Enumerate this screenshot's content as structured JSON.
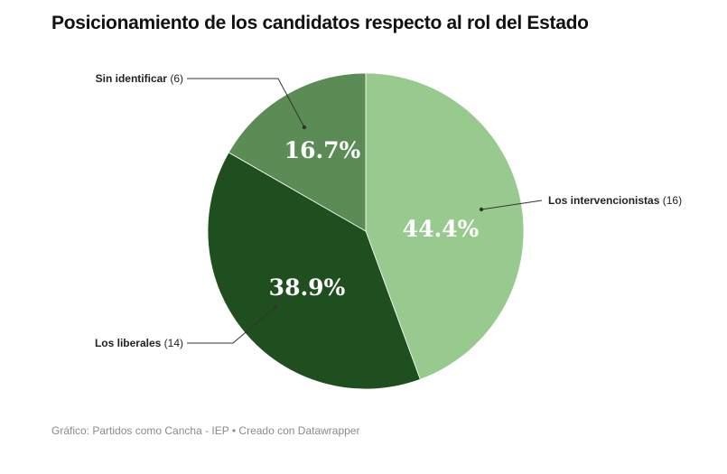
{
  "chart_data": {
    "type": "pie",
    "title": "Posicionamiento de los candidatos respecto al rol del Estado",
    "slices": [
      {
        "name": "Los intervencionistas",
        "count": "(16)",
        "value": 44.4,
        "label": "44.4%",
        "color": "#98c98e"
      },
      {
        "name": "Los liberales",
        "count": "(14)",
        "value": 38.9,
        "label": "38.9%",
        "color": "#1f4f1e"
      },
      {
        "name": "Sin identificar",
        "count": "(6)",
        "value": 16.7,
        "label": "16.7%",
        "color": "#5b8c56"
      }
    ]
  },
  "footer": {
    "source": "Gráfico: Partidos como Cancha - IEP",
    "credit": " • Creado con Datawrapper"
  }
}
